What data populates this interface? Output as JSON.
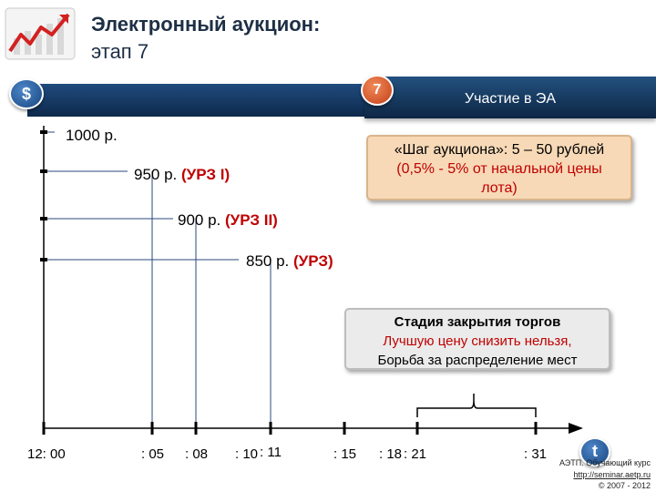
{
  "header": {
    "title_line1": "Электронный аукцион:",
    "title_line2": "этап 7"
  },
  "badges": {
    "currency_symbol": "$",
    "step_number": "7",
    "step_label": "Участие в ЭА",
    "time_symbol": "t"
  },
  "price_levels": [
    {
      "price": "1000 р.",
      "note": ""
    },
    {
      "price": "950 р.",
      "note": "(УРЗ I)"
    },
    {
      "price": "900 р.",
      "note": "(УРЗ II)"
    },
    {
      "price": "850 р.",
      "note": "(УРЗ)"
    }
  ],
  "time_ticks": [
    "12: 00",
    ": 05",
    ": 08",
    ": 10",
    ": 11",
    ": 15",
    ": 18",
    ": 21",
    ": 31"
  ],
  "step_info": {
    "line1": "«Шаг аукциона»: 5 – 50 рублей",
    "line2": "(0,5% - 5% от начальной цены лота)"
  },
  "closing_info": {
    "line1": "Стадия закрытия торгов",
    "line2": "Лучшую цену снизить нельзя,",
    "line3": "Борьба за распределение мест"
  },
  "footer": {
    "line1": "АЭТП. Обучающий курс",
    "line2": "http://seminar.aetp.ru",
    "line3": "© 2007 - 2012"
  },
  "colors": {
    "axis": "#000000",
    "level_line": "#2b4a7a",
    "accent_red": "#c00000",
    "banner": "#12345c"
  }
}
